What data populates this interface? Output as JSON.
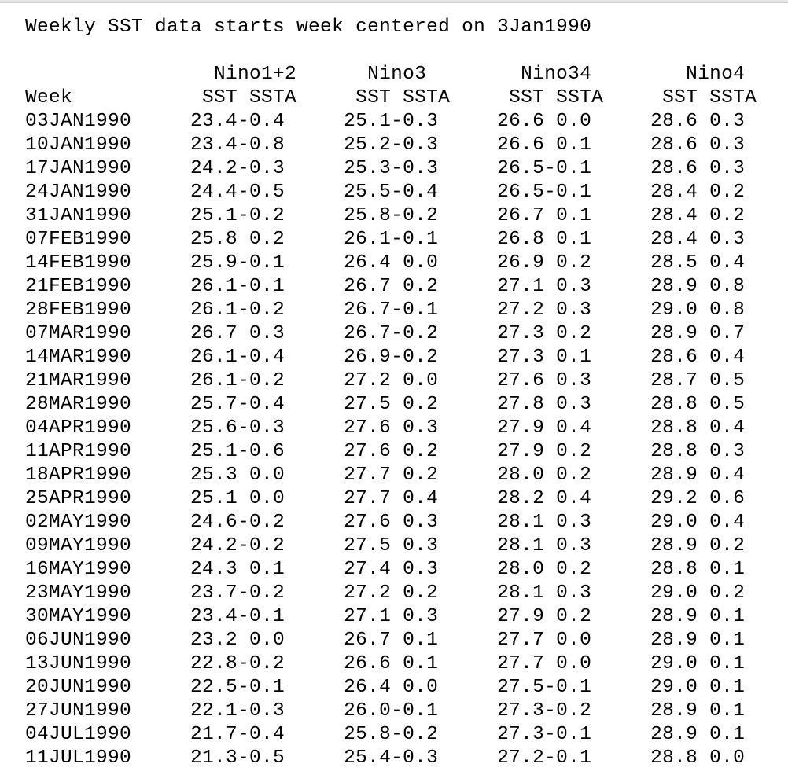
{
  "header_line": "Weekly SST data starts week centered on 3Jan1990",
  "region_header_line": "                Nino1+2      Nino3        Nino34        Nino4",
  "column_header_line": "Week           SST SSTA     SST SSTA     SST SSTA     SST SSTA",
  "rows": [
    "03JAN1990     23.4-0.4     25.1-0.3     26.6 0.0     28.6 0.3",
    "10JAN1990     23.4-0.8     25.2-0.3     26.6 0.1     28.6 0.3",
    "17JAN1990     24.2-0.3     25.3-0.3     26.5-0.1     28.6 0.3",
    "24JAN1990     24.4-0.5     25.5-0.4     26.5-0.1     28.4 0.2",
    "31JAN1990     25.1-0.2     25.8-0.2     26.7 0.1     28.4 0.2",
    "07FEB1990     25.8 0.2     26.1-0.1     26.8 0.1     28.4 0.3",
    "14FEB1990     25.9-0.1     26.4 0.0     26.9 0.2     28.5 0.4",
    "21FEB1990     26.1-0.1     26.7 0.2     27.1 0.3     28.9 0.8",
    "28FEB1990     26.1-0.2     26.7-0.1     27.2 0.3     29.0 0.8",
    "07MAR1990     26.7 0.3     26.7-0.2     27.3 0.2     28.9 0.7",
    "14MAR1990     26.1-0.4     26.9-0.2     27.3 0.1     28.6 0.4",
    "21MAR1990     26.1-0.2     27.2 0.0     27.6 0.3     28.7 0.5",
    "28MAR1990     25.7-0.4     27.5 0.2     27.8 0.3     28.8 0.5",
    "04APR1990     25.6-0.3     27.6 0.3     27.9 0.4     28.8 0.4",
    "11APR1990     25.1-0.6     27.6 0.2     27.9 0.2     28.8 0.3",
    "18APR1990     25.3 0.0     27.7 0.2     28.0 0.2     28.9 0.4",
    "25APR1990     25.1 0.0     27.7 0.4     28.2 0.4     29.2 0.6",
    "02MAY1990     24.6-0.2     27.6 0.3     28.1 0.3     29.0 0.4",
    "09MAY1990     24.2-0.2     27.5 0.3     28.1 0.3     28.9 0.2",
    "16MAY1990     24.3 0.1     27.4 0.3     28.0 0.2     28.8 0.1",
    "23MAY1990     23.7-0.2     27.2 0.2     28.1 0.3     29.0 0.2",
    "30MAY1990     23.4-0.1     27.1 0.3     27.9 0.2     28.9 0.1",
    "06JUN1990     23.2 0.0     26.7 0.1     27.7 0.0     28.9 0.1",
    "13JUN1990     22.8-0.2     26.6 0.1     27.7 0.0     29.0 0.1",
    "20JUN1990     22.5-0.1     26.4 0.0     27.5-0.1     29.0 0.1",
    "27JUN1990     22.1-0.3     26.0-0.1     27.3-0.2     28.9 0.1",
    "04JUL1990     21.7-0.4     25.8-0.2     27.3-0.1     28.9 0.1",
    "11JUL1990     21.3-0.5     25.4-0.3     27.2-0.1     28.8 0.0"
  ]
}
